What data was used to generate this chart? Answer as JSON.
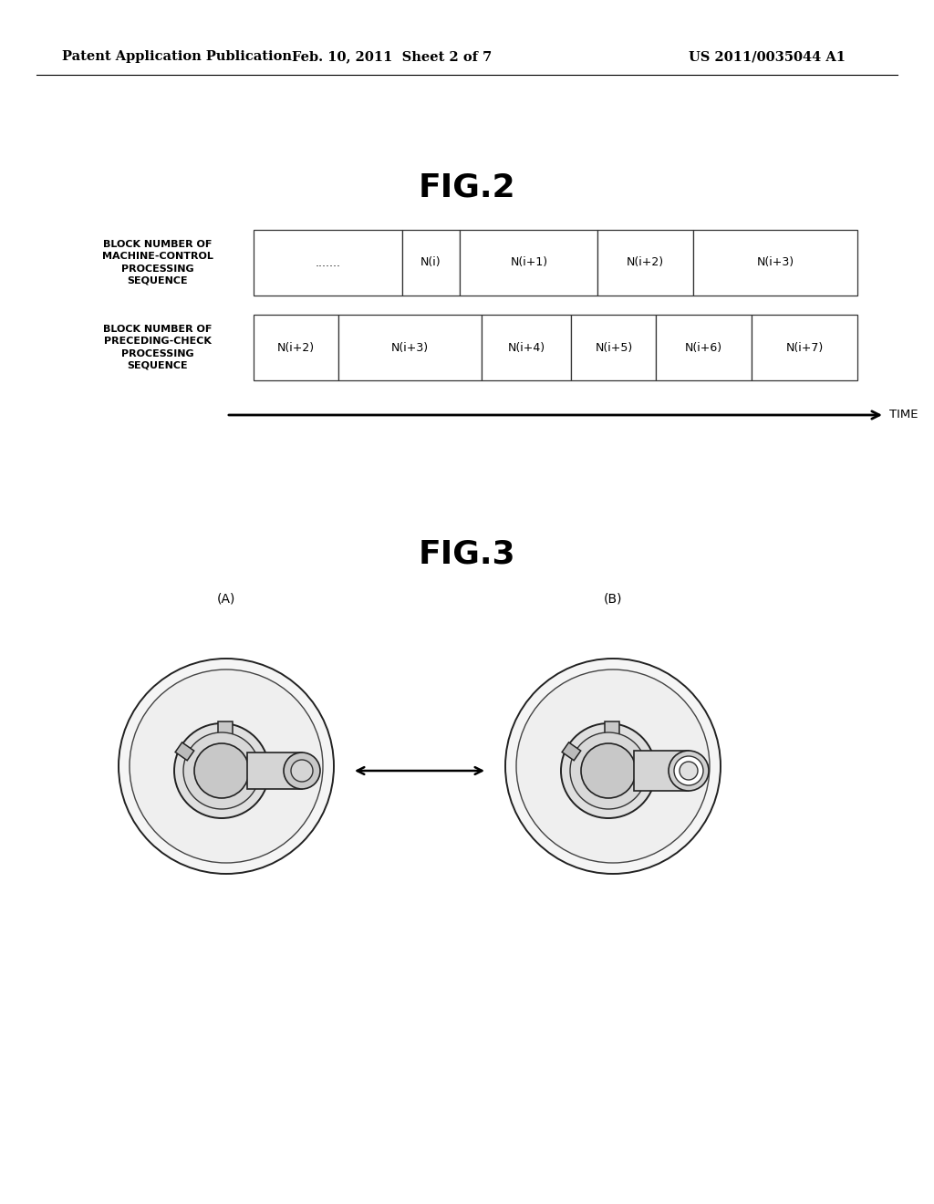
{
  "background_color": "#ffffff",
  "header_left": "Patent Application Publication",
  "header_center": "Feb. 10, 2011  Sheet 2 of 7",
  "header_right": "US 2011/0035044 A1",
  "fig2_title": "FIG.2",
  "fig3_title": "FIG.3",
  "row1_label": "BLOCK NUMBER OF\nMACHINE-CONTROL\nPROCESSING\nSEQUENCE",
  "row2_label": "BLOCK NUMBER OF\nPRECEDING-CHECK\nPROCESSING\nSEQUENCE",
  "row1_cells": [
    ".......",
    "N(i)",
    "N(i+1)",
    "N(i+2)",
    "N(i+3)"
  ],
  "row2_cells": [
    "N(i+2)",
    "N(i+3)",
    "N(i+4)",
    "N(i+5)",
    "N(i+6)",
    "N(i+7)"
  ],
  "row1_widths": [
    1.4,
    0.55,
    1.3,
    0.9,
    1.55
  ],
  "row2_widths": [
    0.8,
    1.35,
    0.85,
    0.8,
    0.9,
    1.0
  ],
  "time_label": "TIME",
  "fig3_label_A": "(A)",
  "fig3_label_B": "(B)"
}
